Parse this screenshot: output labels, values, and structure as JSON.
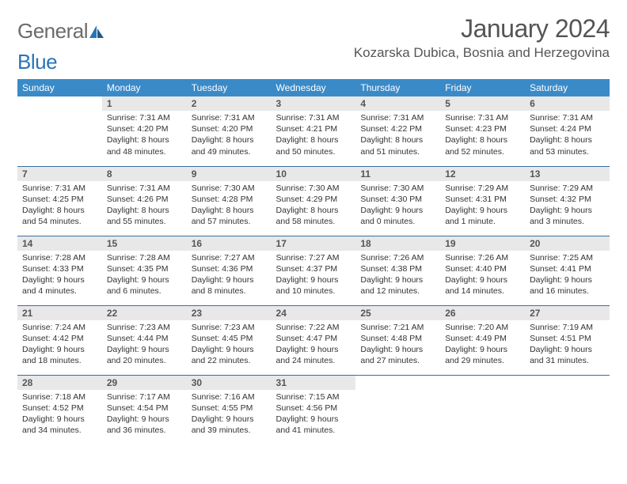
{
  "brand": {
    "part1": "General",
    "part2": "Blue"
  },
  "title": "January 2024",
  "location": "Kozarska Dubica, Bosnia and Herzegovina",
  "colors": {
    "header_bg": "#3a8ac8",
    "header_text": "#ffffff",
    "daynum_bg": "#e8e8e8",
    "row_border": "#3a6fa0",
    "title_text": "#555555",
    "body_text": "#333333",
    "logo_gray": "#6b6b6b",
    "logo_blue": "#2974b8",
    "page_bg": "#ffffff"
  },
  "weekdays": [
    "Sunday",
    "Monday",
    "Tuesday",
    "Wednesday",
    "Thursday",
    "Friday",
    "Saturday"
  ],
  "weeks": [
    [
      {
        "day": "",
        "sunrise": "",
        "sunset": "",
        "daylight": ""
      },
      {
        "day": "1",
        "sunrise": "Sunrise: 7:31 AM",
        "sunset": "Sunset: 4:20 PM",
        "daylight": "Daylight: 8 hours and 48 minutes."
      },
      {
        "day": "2",
        "sunrise": "Sunrise: 7:31 AM",
        "sunset": "Sunset: 4:20 PM",
        "daylight": "Daylight: 8 hours and 49 minutes."
      },
      {
        "day": "3",
        "sunrise": "Sunrise: 7:31 AM",
        "sunset": "Sunset: 4:21 PM",
        "daylight": "Daylight: 8 hours and 50 minutes."
      },
      {
        "day": "4",
        "sunrise": "Sunrise: 7:31 AM",
        "sunset": "Sunset: 4:22 PM",
        "daylight": "Daylight: 8 hours and 51 minutes."
      },
      {
        "day": "5",
        "sunrise": "Sunrise: 7:31 AM",
        "sunset": "Sunset: 4:23 PM",
        "daylight": "Daylight: 8 hours and 52 minutes."
      },
      {
        "day": "6",
        "sunrise": "Sunrise: 7:31 AM",
        "sunset": "Sunset: 4:24 PM",
        "daylight": "Daylight: 8 hours and 53 minutes."
      }
    ],
    [
      {
        "day": "7",
        "sunrise": "Sunrise: 7:31 AM",
        "sunset": "Sunset: 4:25 PM",
        "daylight": "Daylight: 8 hours and 54 minutes."
      },
      {
        "day": "8",
        "sunrise": "Sunrise: 7:31 AM",
        "sunset": "Sunset: 4:26 PM",
        "daylight": "Daylight: 8 hours and 55 minutes."
      },
      {
        "day": "9",
        "sunrise": "Sunrise: 7:30 AM",
        "sunset": "Sunset: 4:28 PM",
        "daylight": "Daylight: 8 hours and 57 minutes."
      },
      {
        "day": "10",
        "sunrise": "Sunrise: 7:30 AM",
        "sunset": "Sunset: 4:29 PM",
        "daylight": "Daylight: 8 hours and 58 minutes."
      },
      {
        "day": "11",
        "sunrise": "Sunrise: 7:30 AM",
        "sunset": "Sunset: 4:30 PM",
        "daylight": "Daylight: 9 hours and 0 minutes."
      },
      {
        "day": "12",
        "sunrise": "Sunrise: 7:29 AM",
        "sunset": "Sunset: 4:31 PM",
        "daylight": "Daylight: 9 hours and 1 minute."
      },
      {
        "day": "13",
        "sunrise": "Sunrise: 7:29 AM",
        "sunset": "Sunset: 4:32 PM",
        "daylight": "Daylight: 9 hours and 3 minutes."
      }
    ],
    [
      {
        "day": "14",
        "sunrise": "Sunrise: 7:28 AM",
        "sunset": "Sunset: 4:33 PM",
        "daylight": "Daylight: 9 hours and 4 minutes."
      },
      {
        "day": "15",
        "sunrise": "Sunrise: 7:28 AM",
        "sunset": "Sunset: 4:35 PM",
        "daylight": "Daylight: 9 hours and 6 minutes."
      },
      {
        "day": "16",
        "sunrise": "Sunrise: 7:27 AM",
        "sunset": "Sunset: 4:36 PM",
        "daylight": "Daylight: 9 hours and 8 minutes."
      },
      {
        "day": "17",
        "sunrise": "Sunrise: 7:27 AM",
        "sunset": "Sunset: 4:37 PM",
        "daylight": "Daylight: 9 hours and 10 minutes."
      },
      {
        "day": "18",
        "sunrise": "Sunrise: 7:26 AM",
        "sunset": "Sunset: 4:38 PM",
        "daylight": "Daylight: 9 hours and 12 minutes."
      },
      {
        "day": "19",
        "sunrise": "Sunrise: 7:26 AM",
        "sunset": "Sunset: 4:40 PM",
        "daylight": "Daylight: 9 hours and 14 minutes."
      },
      {
        "day": "20",
        "sunrise": "Sunrise: 7:25 AM",
        "sunset": "Sunset: 4:41 PM",
        "daylight": "Daylight: 9 hours and 16 minutes."
      }
    ],
    [
      {
        "day": "21",
        "sunrise": "Sunrise: 7:24 AM",
        "sunset": "Sunset: 4:42 PM",
        "daylight": "Daylight: 9 hours and 18 minutes."
      },
      {
        "day": "22",
        "sunrise": "Sunrise: 7:23 AM",
        "sunset": "Sunset: 4:44 PM",
        "daylight": "Daylight: 9 hours and 20 minutes."
      },
      {
        "day": "23",
        "sunrise": "Sunrise: 7:23 AM",
        "sunset": "Sunset: 4:45 PM",
        "daylight": "Daylight: 9 hours and 22 minutes."
      },
      {
        "day": "24",
        "sunrise": "Sunrise: 7:22 AM",
        "sunset": "Sunset: 4:47 PM",
        "daylight": "Daylight: 9 hours and 24 minutes."
      },
      {
        "day": "25",
        "sunrise": "Sunrise: 7:21 AM",
        "sunset": "Sunset: 4:48 PM",
        "daylight": "Daylight: 9 hours and 27 minutes."
      },
      {
        "day": "26",
        "sunrise": "Sunrise: 7:20 AM",
        "sunset": "Sunset: 4:49 PM",
        "daylight": "Daylight: 9 hours and 29 minutes."
      },
      {
        "day": "27",
        "sunrise": "Sunrise: 7:19 AM",
        "sunset": "Sunset: 4:51 PM",
        "daylight": "Daylight: 9 hours and 31 minutes."
      }
    ],
    [
      {
        "day": "28",
        "sunrise": "Sunrise: 7:18 AM",
        "sunset": "Sunset: 4:52 PM",
        "daylight": "Daylight: 9 hours and 34 minutes."
      },
      {
        "day": "29",
        "sunrise": "Sunrise: 7:17 AM",
        "sunset": "Sunset: 4:54 PM",
        "daylight": "Daylight: 9 hours and 36 minutes."
      },
      {
        "day": "30",
        "sunrise": "Sunrise: 7:16 AM",
        "sunset": "Sunset: 4:55 PM",
        "daylight": "Daylight: 9 hours and 39 minutes."
      },
      {
        "day": "31",
        "sunrise": "Sunrise: 7:15 AM",
        "sunset": "Sunset: 4:56 PM",
        "daylight": "Daylight: 9 hours and 41 minutes."
      },
      {
        "day": "",
        "sunrise": "",
        "sunset": "",
        "daylight": ""
      },
      {
        "day": "",
        "sunrise": "",
        "sunset": "",
        "daylight": ""
      },
      {
        "day": "",
        "sunrise": "",
        "sunset": "",
        "daylight": ""
      }
    ]
  ]
}
